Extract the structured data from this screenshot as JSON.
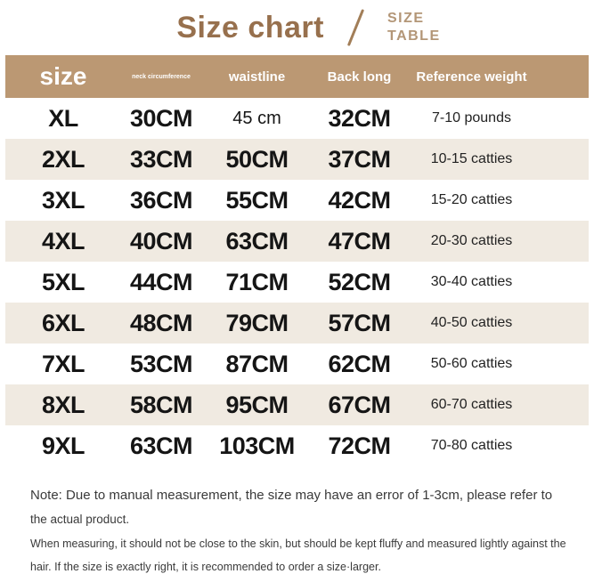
{
  "title": {
    "main": "Size chart",
    "sub_line1": "SIZE",
    "sub_line2": "TABLE"
  },
  "colors": {
    "title_brown": "#97704d",
    "subtitle_brown": "#b39677",
    "header_bg": "#bb9873",
    "header_text": "#ffffff",
    "row_alt_bg": "#f0eae1",
    "row_bg": "#ffffff",
    "cell_text": "#151515",
    "note_text": "#3a3a3a"
  },
  "chart_data": {
    "type": "table",
    "title": "Size chart",
    "columns": [
      "size",
      "neck circumference",
      "waistline",
      "Back long",
      "Reference weight"
    ],
    "rows": [
      [
        "XL",
        "30CM",
        "45 cm",
        "32CM",
        "7-10 pounds"
      ],
      [
        "2XL",
        "33CM",
        "50CM",
        "37CM",
        "10-15 catties"
      ],
      [
        "3XL",
        "36CM",
        "55CM",
        "42CM",
        "15-20 catties"
      ],
      [
        "4XL",
        "40CM",
        "63CM",
        "47CM",
        "20-30 catties"
      ],
      [
        "5XL",
        "44CM",
        "71CM",
        "52CM",
        "30-40 catties"
      ],
      [
        "6XL",
        "48CM",
        "79CM",
        "57CM",
        "40-50 catties"
      ],
      [
        "7XL",
        "53CM",
        "87CM",
        "62CM",
        "50-60 catties"
      ],
      [
        "8XL",
        "58CM",
        "95CM",
        "67CM",
        "60-70 catties"
      ],
      [
        "9XL",
        "63CM",
        "103CM",
        "72CM",
        "70-80 catties"
      ]
    ]
  },
  "notes": {
    "line1": "Note: Due to manual measurement, the size may have an error of 1-3cm, please refer to",
    "line2": "the actual product.",
    "line3": "When measuring, it should not be close to the skin, but should be kept fluffy and measured lightly against the",
    "line4": "hair. If the size is exactly right, it is recommended to order a size·larger."
  }
}
